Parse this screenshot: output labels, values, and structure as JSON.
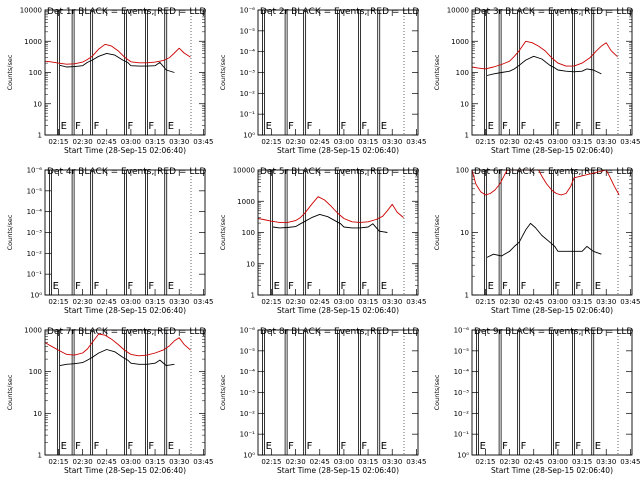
{
  "figure": {
    "x_tick_labels": [
      "02:15",
      "02:30",
      "02:45",
      "03:00",
      "03:15",
      "03:30",
      "03:45"
    ],
    "xlabel": "Start Time (28-Sep-15 02:06:40)",
    "ylabel": "Counts/sec",
    "log_tick_labels": [
      "1",
      "10",
      "100",
      "1000",
      "10000"
    ],
    "log_tick_labels_lin": [
      "10⁰",
      "10⁻¹",
      "10⁻²",
      "10⁻³",
      "10⁻⁴",
      "10⁻⁵",
      "10⁻⁶"
    ],
    "colors": {
      "events": "#000000",
      "lld": "#cc0000",
      "axes": "#000000"
    }
  },
  "chart_data": [
    {
      "type": "line",
      "title": "Det 1r BLACK = Events, RED = LLD",
      "yscale": "log",
      "ylim": [
        1,
        10000
      ],
      "xlim": [
        "02:06:40",
        "03:46"
      ],
      "markers": [
        {
          "t": "02:14:30",
          "label": "E"
        },
        {
          "t": "02:23:30",
          "label": "F"
        },
        {
          "t": "02:35",
          "label": "F"
        },
        {
          "t": "02:56",
          "label": "F"
        },
        {
          "t": "03:09",
          "label": "F"
        },
        {
          "t": "03:21",
          "label": "E"
        }
      ],
      "series": [
        {
          "name": "BLACK = Events",
          "x": [
            "02:16",
            "02:20",
            "02:25",
            "02:30",
            "02:33",
            "02:36",
            "02:40",
            "02:45",
            "02:50",
            "02:55",
            "02:58",
            "03:00",
            "03:05",
            "03:10",
            "03:15",
            "03:18",
            "03:22",
            "03:27"
          ],
          "values": [
            170,
            150,
            155,
            165,
            210,
            250,
            330,
            410,
            360,
            250,
            210,
            165,
            160,
            160,
            165,
            210,
            120,
            100
          ]
        },
        {
          "name": "RED = LLD",
          "x": [
            "02:06:40",
            "02:10",
            "02:15",
            "02:20",
            "02:25",
            "02:30",
            "02:33",
            "02:36",
            "02:40",
            "02:44",
            "02:48",
            "02:52",
            "02:56",
            "03:00",
            "03:05",
            "03:10",
            "03:15",
            "03:20",
            "03:24",
            "03:27",
            "03:30",
            "03:33",
            "03:37"
          ],
          "values": [
            230,
            220,
            200,
            185,
            190,
            215,
            260,
            330,
            560,
            800,
            700,
            500,
            310,
            220,
            205,
            205,
            215,
            240,
            300,
            420,
            600,
            420,
            310
          ]
        }
      ]
    },
    {
      "type": "line",
      "title": "Det 2r BLACK = Events, RED = LLD",
      "yscale": "linear",
      "ylim": [
        1e-06,
        1
      ],
      "xlim": [
        "02:06:40",
        "03:46"
      ],
      "markers": [
        {
          "t": "02:09:30",
          "label": "E"
        },
        {
          "t": "02:23:30",
          "label": "F"
        },
        {
          "t": "02:35",
          "label": "F"
        },
        {
          "t": "02:56",
          "label": "F"
        },
        {
          "t": "03:09",
          "label": "F"
        },
        {
          "t": "03:21",
          "label": "E"
        }
      ],
      "series": []
    },
    {
      "type": "line",
      "title": "Det 3r BLACK = Events, RED = LLD",
      "yscale": "log",
      "ylim": [
        1,
        10000
      ],
      "xlim": [
        "02:06:40",
        "03:46"
      ],
      "markers": [
        {
          "t": "02:14:30",
          "label": "E"
        },
        {
          "t": "02:23:30",
          "label": "F"
        },
        {
          "t": "02:35",
          "label": "F"
        },
        {
          "t": "02:56",
          "label": "F"
        },
        {
          "t": "03:09",
          "label": "F"
        },
        {
          "t": "03:21",
          "label": "E"
        }
      ],
      "series": [
        {
          "name": "BLACK = Events",
          "x": [
            "02:16",
            "02:20",
            "02:25",
            "02:30",
            "02:33",
            "02:36",
            "02:40",
            "02:45",
            "02:50",
            "02:55",
            "02:58",
            "03:00",
            "03:05",
            "03:10",
            "03:15",
            "03:18",
            "03:22",
            "03:27"
          ],
          "values": [
            80,
            90,
            100,
            110,
            130,
            170,
            250,
            330,
            270,
            170,
            140,
            120,
            110,
            105,
            110,
            130,
            120,
            90
          ]
        },
        {
          "name": "RED = LLD",
          "x": [
            "02:06:40",
            "02:10",
            "02:15",
            "02:20",
            "02:25",
            "02:30",
            "02:33",
            "02:36",
            "02:40",
            "02:44",
            "02:48",
            "02:52",
            "02:56",
            "03:00",
            "03:05",
            "03:10",
            "03:15",
            "03:20",
            "03:24",
            "03:27",
            "03:30",
            "03:33",
            "03:37"
          ],
          "values": [
            150,
            140,
            130,
            150,
            180,
            230,
            330,
            500,
            1000,
            900,
            700,
            500,
            300,
            200,
            160,
            160,
            200,
            300,
            500,
            700,
            900,
            500,
            320
          ]
        }
      ]
    },
    {
      "type": "line",
      "title": "Det 4r BLACK = Events, RED = LLD",
      "yscale": "linear",
      "ylim": [
        1e-06,
        1
      ],
      "xlim": [
        "02:06:40",
        "03:46"
      ],
      "markers": [
        {
          "t": "02:09:30",
          "label": "E"
        },
        {
          "t": "02:23:30",
          "label": "F"
        },
        {
          "t": "02:35",
          "label": "F"
        },
        {
          "t": "02:56",
          "label": "F"
        },
        {
          "t": "03:09",
          "label": "F"
        },
        {
          "t": "03:21",
          "label": "E"
        }
      ],
      "series": []
    },
    {
      "type": "line",
      "title": "Det 5r BLACK = Events, RED = LLD",
      "yscale": "log",
      "ylim": [
        1,
        10000
      ],
      "xlim": [
        "02:06:40",
        "03:46"
      ],
      "markers": [
        {
          "t": "02:14:30",
          "label": "E"
        },
        {
          "t": "02:23:30",
          "label": "F"
        },
        {
          "t": "02:35",
          "label": "F"
        },
        {
          "t": "02:56",
          "label": "F"
        },
        {
          "t": "03:09",
          "label": "F"
        },
        {
          "t": "03:21",
          "label": "E"
        }
      ],
      "series": [
        {
          "name": "BLACK = Events",
          "x": [
            "02:16",
            "02:20",
            "02:25",
            "02:30",
            "02:33",
            "02:36",
            "02:40",
            "02:45",
            "02:50",
            "02:55",
            "02:58",
            "03:00",
            "03:05",
            "03:10",
            "03:15",
            "03:18",
            "03:22",
            "03:27"
          ],
          "values": [
            150,
            140,
            145,
            155,
            190,
            230,
            300,
            380,
            320,
            230,
            190,
            150,
            140,
            140,
            150,
            190,
            110,
            100
          ]
        },
        {
          "name": "RED = LLD",
          "x": [
            "02:06:40",
            "02:10",
            "02:15",
            "02:20",
            "02:25",
            "02:30",
            "02:33",
            "02:36",
            "02:40",
            "02:44",
            "02:48",
            "02:52",
            "02:56",
            "03:00",
            "03:05",
            "03:10",
            "03:15",
            "03:20",
            "03:24",
            "03:27",
            "03:30",
            "03:33",
            "03:37"
          ],
          "values": [
            280,
            260,
            230,
            210,
            210,
            240,
            300,
            430,
            800,
            1400,
            1100,
            700,
            420,
            280,
            220,
            210,
            220,
            260,
            330,
            500,
            800,
            450,
            300
          ]
        }
      ]
    },
    {
      "type": "line",
      "title": "Det 6r BLACK = Events, RED = LLD",
      "yscale": "log",
      "ylim": [
        1,
        100
      ],
      "xlim": [
        "02:06:40",
        "03:46"
      ],
      "markers": [
        {
          "t": "02:14:30",
          "label": "E"
        },
        {
          "t": "02:23:30",
          "label": "F"
        },
        {
          "t": "02:35",
          "label": "F"
        },
        {
          "t": "02:56",
          "label": "F"
        },
        {
          "t": "03:09",
          "label": "F"
        },
        {
          "t": "03:21",
          "label": "E"
        }
      ],
      "series": [
        {
          "name": "BLACK = Events",
          "x": [
            "02:16",
            "02:20",
            "02:25",
            "02:30",
            "02:33",
            "02:36",
            "02:40",
            "02:43",
            "02:46",
            "02:50",
            "02:55",
            "02:58",
            "03:00",
            "03:05",
            "03:10",
            "03:15",
            "03:18",
            "03:22",
            "03:27"
          ],
          "values": [
            4,
            4.5,
            4.2,
            5,
            6,
            7,
            11,
            14,
            12,
            9,
            7,
            6,
            5,
            5,
            5,
            5,
            6,
            5,
            4.5
          ]
        },
        {
          "name": "RED = LLD",
          "x": [
            "02:06:40",
            "02:09",
            "02:12",
            "02:15",
            "02:18",
            "02:21",
            "02:24",
            "02:27",
            "02:28:30",
            "02:48",
            "02:50",
            "02:53",
            "02:56",
            "02:59",
            "03:02",
            "03:05",
            "03:08",
            "03:10",
            "03:30",
            "03:32",
            "03:35",
            "03:38"
          ],
          "values": [
            100,
            60,
            45,
            40,
            42,
            48,
            60,
            85,
            100,
            100,
            80,
            60,
            48,
            42,
            40,
            42,
            55,
            75,
            100,
            80,
            55,
            40
          ]
        }
      ]
    },
    {
      "type": "line",
      "title": "Det 7r BLACK = Events, RED = LLD",
      "yscale": "log",
      "ylim": [
        1,
        1000
      ],
      "xlim": [
        "02:06:40",
        "03:46"
      ],
      "markers": [
        {
          "t": "02:14:30",
          "label": "E"
        },
        {
          "t": "02:23:30",
          "label": "F"
        },
        {
          "t": "02:35",
          "label": "F"
        },
        {
          "t": "02:56",
          "label": "F"
        },
        {
          "t": "03:09",
          "label": "F"
        },
        {
          "t": "03:21",
          "label": "E"
        }
      ],
      "series": [
        {
          "name": "BLACK = Events",
          "x": [
            "02:16",
            "02:20",
            "02:25",
            "02:30",
            "02:33",
            "02:36",
            "02:40",
            "02:45",
            "02:50",
            "02:55",
            "02:58",
            "03:00",
            "03:05",
            "03:10",
            "03:15",
            "03:18",
            "03:22",
            "03:27"
          ],
          "values": [
            140,
            150,
            155,
            165,
            190,
            220,
            280,
            340,
            300,
            220,
            190,
            160,
            150,
            150,
            160,
            190,
            140,
            150
          ]
        },
        {
          "name": "RED = LLD",
          "x": [
            "02:06:40",
            "02:10",
            "02:15",
            "02:20",
            "02:25",
            "02:30",
            "02:33",
            "02:36",
            "02:40",
            "02:44",
            "02:48",
            "02:52",
            "02:56",
            "03:00",
            "03:05",
            "03:10",
            "03:15",
            "03:20",
            "03:24",
            "03:27",
            "03:30",
            "03:33",
            "03:37"
          ],
          "values": [
            500,
            420,
            330,
            260,
            250,
            280,
            350,
            500,
            800,
            750,
            600,
            450,
            330,
            260,
            240,
            250,
            280,
            330,
            420,
            550,
            650,
            450,
            330
          ]
        }
      ]
    },
    {
      "type": "line",
      "title": "Det 8r BLACK = Events, RED = LLD",
      "yscale": "linear",
      "ylim": [
        1e-06,
        1
      ],
      "xlim": [
        "02:06:40",
        "03:46"
      ],
      "markers": [
        {
          "t": "02:09:30",
          "label": "E"
        },
        {
          "t": "02:23:30",
          "label": "F"
        },
        {
          "t": "02:35",
          "label": "F"
        },
        {
          "t": "02:56",
          "label": "F"
        },
        {
          "t": "03:09",
          "label": "F"
        },
        {
          "t": "03:21",
          "label": "E"
        }
      ],
      "series": []
    },
    {
      "type": "line",
      "title": "Det 9r BLACK = Events, RED = LLD",
      "yscale": "linear",
      "ylim": [
        1e-06,
        1
      ],
      "xlim": [
        "02:06:40",
        "03:46"
      ],
      "markers": [
        {
          "t": "02:09:30",
          "label": "E"
        },
        {
          "t": "02:23:30",
          "label": "F"
        },
        {
          "t": "02:35",
          "label": "F"
        },
        {
          "t": "02:56",
          "label": "F"
        },
        {
          "t": "03:09",
          "label": "F"
        },
        {
          "t": "03:21",
          "label": "E"
        }
      ],
      "series": []
    }
  ]
}
